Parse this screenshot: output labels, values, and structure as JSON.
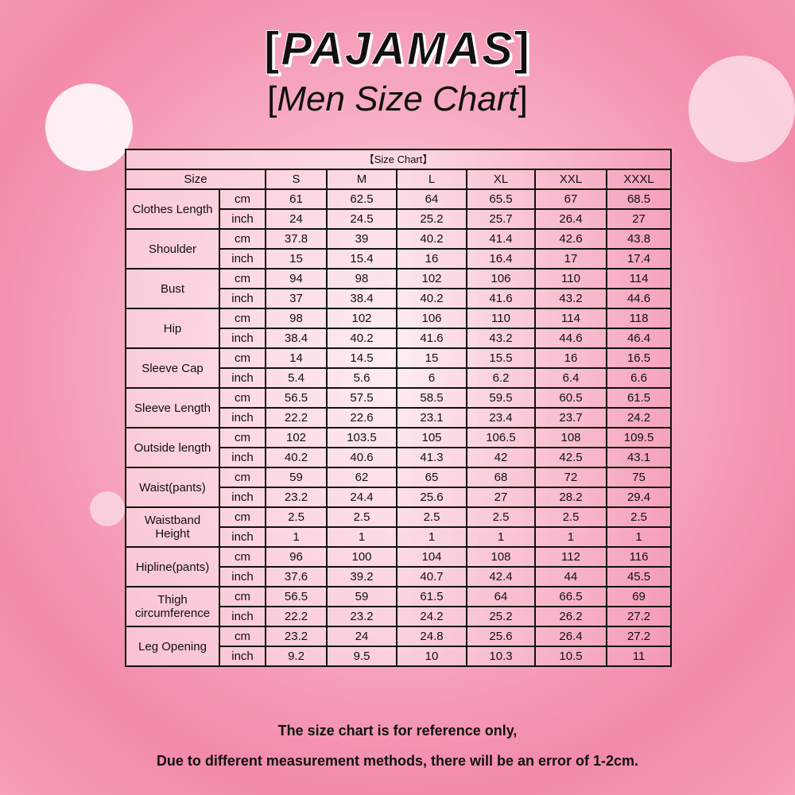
{
  "title": {
    "bracket_left": "[",
    "text": "PAJAMAS",
    "bracket_right": "]"
  },
  "subtitle": {
    "bracket_left": "[",
    "text": "Men Size Chart",
    "bracket_right": "]"
  },
  "table": {
    "caption": "【Size Chart】",
    "size_header": "Size",
    "sizes": [
      "S",
      "M",
      "L",
      "XL",
      "XXL",
      "XXXL"
    ],
    "rows": [
      {
        "label": "Clothes Length",
        "cm": [
          "61",
          "62.5",
          "64",
          "65.5",
          "67",
          "68.5"
        ],
        "inch": [
          "24",
          "24.5",
          "25.2",
          "25.7",
          "26.4",
          "27"
        ]
      },
      {
        "label": "Shoulder",
        "cm": [
          "37.8",
          "39",
          "40.2",
          "41.4",
          "42.6",
          "43.8"
        ],
        "inch": [
          "15",
          "15.4",
          "16",
          "16.4",
          "17",
          "17.4"
        ]
      },
      {
        "label": "Bust",
        "cm": [
          "94",
          "98",
          "102",
          "106",
          "110",
          "114"
        ],
        "inch": [
          "37",
          "38.4",
          "40.2",
          "41.6",
          "43.2",
          "44.6"
        ]
      },
      {
        "label": "Hip",
        "cm": [
          "98",
          "102",
          "106",
          "110",
          "114",
          "118"
        ],
        "inch": [
          "38.4",
          "40.2",
          "41.6",
          "43.2",
          "44.6",
          "46.4"
        ]
      },
      {
        "label": "Sleeve Cap",
        "cm": [
          "14",
          "14.5",
          "15",
          "15.5",
          "16",
          "16.5"
        ],
        "inch": [
          "5.4",
          "5.6",
          "6",
          "6.2",
          "6.4",
          "6.6"
        ]
      },
      {
        "label": "Sleeve Length",
        "cm": [
          "56.5",
          "57.5",
          "58.5",
          "59.5",
          "60.5",
          "61.5"
        ],
        "inch": [
          "22.2",
          "22.6",
          "23.1",
          "23.4",
          "23.7",
          "24.2"
        ]
      },
      {
        "label": "Outside length",
        "cm": [
          "102",
          "103.5",
          "105",
          "106.5",
          "108",
          "109.5"
        ],
        "inch": [
          "40.2",
          "40.6",
          "41.3",
          "42",
          "42.5",
          "43.1"
        ]
      },
      {
        "label": "Waist(pants)",
        "cm": [
          "59",
          "62",
          "65",
          "68",
          "72",
          "75"
        ],
        "inch": [
          "23.2",
          "24.4",
          "25.6",
          "27",
          "28.2",
          "29.4"
        ]
      },
      {
        "label": "Waistband Height",
        "cm": [
          "2.5",
          "2.5",
          "2.5",
          "2.5",
          "2.5",
          "2.5"
        ],
        "inch": [
          "1",
          "1",
          "1",
          "1",
          "1",
          "1"
        ]
      },
      {
        "label": "Hipline(pants)",
        "cm": [
          "96",
          "100",
          "104",
          "108",
          "112",
          "116"
        ],
        "inch": [
          "37.6",
          "39.2",
          "40.7",
          "42.4",
          "44",
          "45.5"
        ]
      },
      {
        "label": "Thigh circumference",
        "cm": [
          "56.5",
          "59",
          "61.5",
          "64",
          "66.5",
          "69"
        ],
        "inch": [
          "22.2",
          "23.2",
          "24.2",
          "25.2",
          "26.2",
          "27.2"
        ]
      },
      {
        "label": "Leg Opening",
        "cm": [
          "23.2",
          "24",
          "24.8",
          "25.6",
          "26.4",
          "27.2"
        ],
        "inch": [
          "9.2",
          "9.5",
          "10",
          "10.3",
          "10.5",
          "11"
        ]
      }
    ],
    "unit_cm": "cm",
    "unit_inch": "inch"
  },
  "notes": [
    "The size chart is for reference only,",
    "Due to different measurement methods, there will be an error of 1-2cm."
  ]
}
